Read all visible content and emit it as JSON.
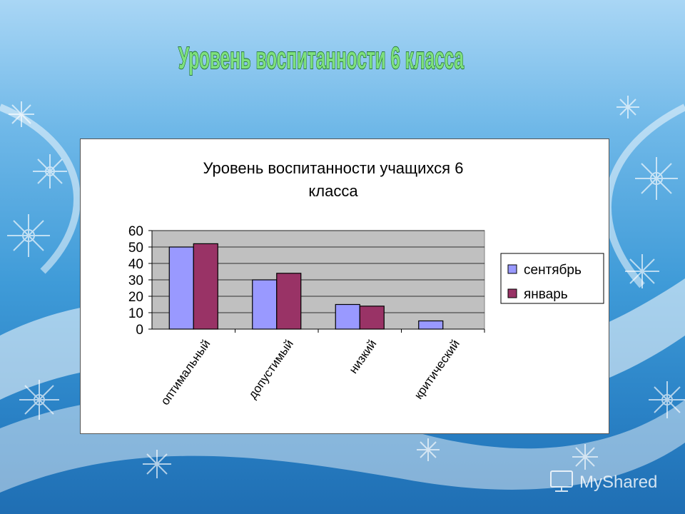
{
  "slide": {
    "title": "Уровень воспитанности 6 класса",
    "watermark": "MyShared"
  },
  "colors": {
    "series_1": "#9999ff",
    "series_2": "#993366",
    "plot_area": "#c0c0c0",
    "title_fill": "#7ee07e",
    "title_stroke": "#0c5a12"
  },
  "chart_data": {
    "type": "bar",
    "title_lines": [
      "Уровень воспитанности учащихся 6",
      "класса"
    ],
    "categories": [
      "оптимальный",
      "допустимый",
      "низкий",
      "критический"
    ],
    "series": [
      {
        "name": "сентябрь",
        "values": [
          50,
          30,
          15,
          5
        ]
      },
      {
        "name": "январь",
        "values": [
          52,
          34,
          14,
          0
        ]
      }
    ],
    "yticks": [
      0,
      10,
      20,
      30,
      40,
      50,
      60
    ],
    "ylim": [
      0,
      60
    ],
    "grid": true,
    "legend": "right"
  }
}
